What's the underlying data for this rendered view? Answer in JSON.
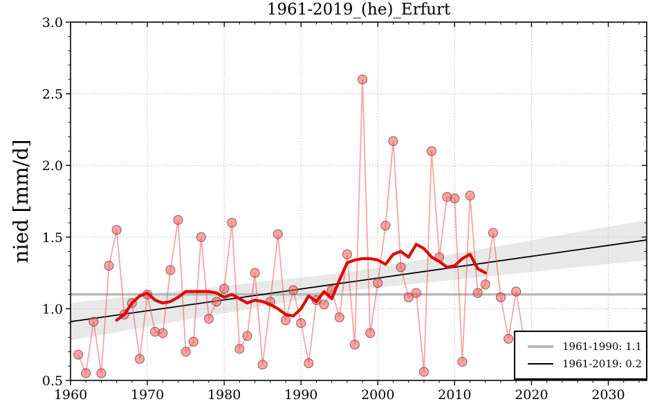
{
  "chart_data": {
    "type": "scatter",
    "title": "1961-2019_(he)_Erfurt",
    "xlabel": "",
    "ylabel": "nied [mm/d]",
    "xlim": [
      1960,
      2035
    ],
    "ylim": [
      0.5,
      3.0
    ],
    "xticks": [
      1960,
      1970,
      1980,
      1990,
      2000,
      2010,
      2020,
      2030
    ],
    "xtick_labels": [
      "1960",
      "1970",
      "1980",
      "1990",
      "2000",
      "2010",
      "2020",
      "2030"
    ],
    "yticks": [
      0.5,
      1.0,
      1.5,
      2.0,
      2.5,
      3.0
    ],
    "ytick_labels": [
      "0.5",
      "1.0",
      "1.5",
      "2.0",
      "2.5",
      "3.0"
    ],
    "grid": "dotted, both axes, decade x-lines and 0.5 y-lines",
    "series": [
      {
        "name": "annual-values",
        "style": "scatter points connected by pale red line",
        "color": "#ff6b6b",
        "point_fill": "rgba(248,90,90,0.55)",
        "years": [
          1961,
          1962,
          1963,
          1964,
          1965,
          1966,
          1967,
          1968,
          1969,
          1970,
          1971,
          1972,
          1973,
          1974,
          1975,
          1976,
          1977,
          1978,
          1979,
          1980,
          1981,
          1982,
          1983,
          1984,
          1985,
          1986,
          1987,
          1988,
          1989,
          1990,
          1991,
          1992,
          1993,
          1994,
          1995,
          1996,
          1997,
          1998,
          1999,
          2000,
          2001,
          2002,
          2003,
          2004,
          2005,
          2006,
          2007,
          2008,
          2009,
          2010,
          2011,
          2012,
          2013,
          2014,
          2015,
          2016,
          2017,
          2018,
          2019
        ],
        "values": [
          0.68,
          0.55,
          0.91,
          0.55,
          1.3,
          1.55,
          0.96,
          1.04,
          0.65,
          1.1,
          0.84,
          0.83,
          1.27,
          1.62,
          0.7,
          0.77,
          1.5,
          0.93,
          1.05,
          1.14,
          1.6,
          0.72,
          0.81,
          1.25,
          0.61,
          1.05,
          1.52,
          0.92,
          1.13,
          0.9,
          0.62,
          1.06,
          1.03,
          1.13,
          0.94,
          1.38,
          0.75,
          2.6,
          0.83,
          1.18,
          1.58,
          2.17,
          1.29,
          1.08,
          1.11,
          0.56,
          2.1,
          1.36,
          1.78,
          1.77,
          0.63,
          1.79,
          1.11,
          1.17,
          1.53,
          1.08,
          0.79,
          1.12,
          0.8
        ]
      },
      {
        "name": "running-mean",
        "style": "thick red line",
        "color": "#e10600",
        "years": [
          1966,
          1967,
          1968,
          1969,
          1970,
          1971,
          1972,
          1973,
          1974,
          1975,
          1976,
          1977,
          1978,
          1979,
          1980,
          1981,
          1982,
          1983,
          1984,
          1985,
          1986,
          1987,
          1988,
          1989,
          1990,
          1991,
          1992,
          1993,
          1994,
          1995,
          1996,
          1997,
          1998,
          1999,
          2000,
          2001,
          2002,
          2003,
          2004,
          2005,
          2006,
          2007,
          2008,
          2009,
          2010,
          2011,
          2012,
          2013,
          2014
        ],
        "values": [
          0.92,
          0.96,
          1.04,
          1.09,
          1.11,
          1.06,
          1.04,
          1.05,
          1.08,
          1.12,
          1.12,
          1.12,
          1.12,
          1.11,
          1.08,
          1.1,
          1.07,
          1.04,
          1.06,
          1.05,
          1.03,
          1.0,
          0.96,
          0.95,
          1.0,
          1.09,
          1.05,
          1.12,
          1.07,
          1.2,
          1.32,
          1.34,
          1.35,
          1.35,
          1.34,
          1.31,
          1.38,
          1.4,
          1.36,
          1.45,
          1.42,
          1.36,
          1.33,
          1.29,
          1.3,
          1.35,
          1.38,
          1.28,
          1.25
        ]
      },
      {
        "name": "mean-1961-1990",
        "style": "thick gray horizontal line",
        "color": "#b9b9b9",
        "value": 1.1,
        "x_range": [
          1960,
          2035
        ]
      },
      {
        "name": "trend-1961-2019",
        "style": "thin black regression line with gray confidence band",
        "color": "#000000",
        "points": [
          [
            1960,
            0.91
          ],
          [
            2035,
            1.48
          ]
        ],
        "band_color": "#cccccc",
        "band_top": [
          [
            1960,
            1.04
          ],
          [
            1997,
            1.26
          ],
          [
            2035,
            1.62
          ]
        ],
        "band_bottom": [
          [
            1960,
            0.78
          ],
          [
            1997,
            1.13
          ],
          [
            2035,
            1.34
          ]
        ]
      }
    ],
    "legend": {
      "position": "lower right",
      "entries": [
        {
          "label": "1961-1990: 1.1",
          "color": "#b9b9b9"
        },
        {
          "label": "1961-2019: 0.2",
          "color": "#000000"
        }
      ]
    }
  }
}
